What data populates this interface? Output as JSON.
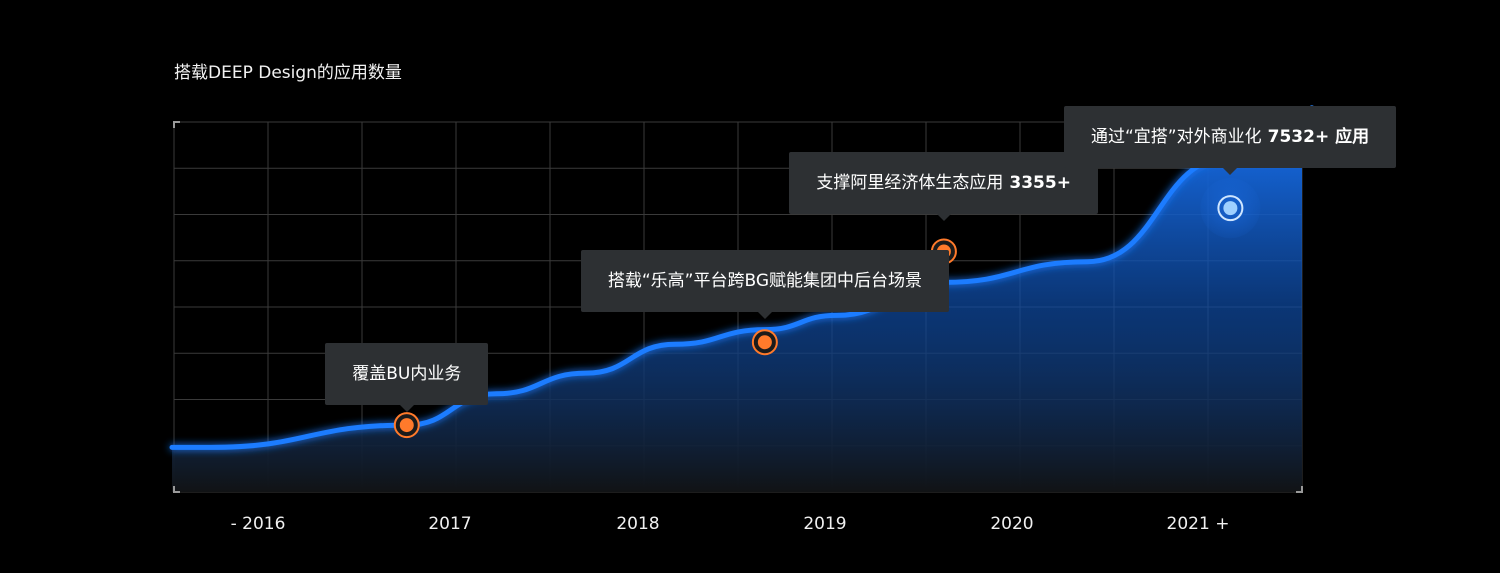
{
  "chart_data": {
    "type": "area",
    "title": "搭载DEEP Design的应用数量",
    "categories": [
      "- 2016",
      "2017",
      "2018",
      "2019",
      "2020",
      "2021 +"
    ],
    "y_scale": "relative, unlabeled",
    "ylim": [
      0,
      8000
    ],
    "grid": true,
    "series": [
      {
        "values": [
          500,
          1040,
          1800,
          2300,
          3000,
          3355,
          3700,
          4500,
          5000,
          7532
        ]
      }
    ],
    "x": [
      2015.4,
      2016.5,
      2017.0,
      2017.5,
      2018.0,
      2018.5,
      2018.9,
      2019.5,
      2020.3,
      2021.1
    ],
    "annotations": [
      {
        "id": "a1",
        "x": 2016.5,
        "y": 1040,
        "text": "覆盖BU内业务",
        "value": "",
        "marker": "orange"
      },
      {
        "id": "a2",
        "x": 2018.5,
        "y": 3050,
        "text": "搭载“乐高”平台跨BG赋能集团中后台场景",
        "value": "",
        "marker": "orange"
      },
      {
        "id": "a3",
        "x": 2019.5,
        "y": 5250,
        "text": "支撑阿里经济体生态应用",
        "value": "3355+",
        "marker": "orange"
      },
      {
        "id": "a4",
        "x": 2021.1,
        "y": 6300,
        "text": "通过“宜搭”对外商业化",
        "value": "7532+ 应用",
        "marker": "blue"
      }
    ],
    "colors": {
      "line": "#1a7cff",
      "marker_orange": "#ff7a2b",
      "marker_blue": "#9fd0ff",
      "grid": "#3a3a3a",
      "callout_bg": "#2d3033"
    }
  }
}
